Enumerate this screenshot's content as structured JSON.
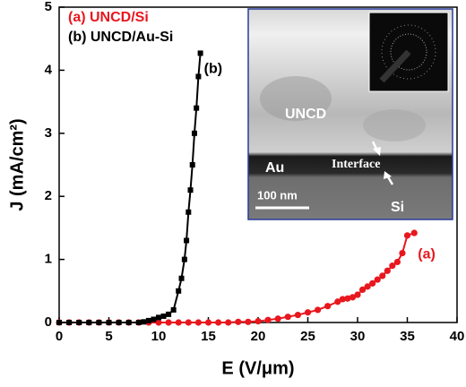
{
  "chart_data": {
    "type": "line",
    "xlabel": "E (V/μm)",
    "ylabel": "J (mA/cm²)",
    "xlim": [
      0,
      40
    ],
    "xticks": [
      0,
      5,
      10,
      15,
      20,
      25,
      30,
      35,
      40
    ],
    "ylim": [
      0,
      5
    ],
    "yticks": [
      0,
      1,
      2,
      3,
      4,
      5
    ],
    "legend": "upper left",
    "series": [
      {
        "name": "(a) UNCD/Si",
        "label": "(a)",
        "color": "#e8171e",
        "marker": "circle",
        "x": [
          0,
          1,
          2,
          3,
          4,
          5,
          6,
          7,
          8,
          9,
          10,
          11,
          12,
          13,
          14,
          15,
          16,
          17,
          18,
          19,
          20,
          21,
          22,
          23,
          24,
          25,
          26,
          27,
          28,
          28.5,
          29,
          29.5,
          30,
          30.5,
          31,
          31.5,
          32,
          32.5,
          33,
          33.5,
          34,
          34.5,
          35,
          35.7
        ],
        "values": [
          0,
          0,
          0,
          0,
          0,
          0,
          0,
          0,
          0,
          0,
          0,
          0,
          0,
          0,
          0,
          0,
          0,
          0,
          0.01,
          0.01,
          0.02,
          0.04,
          0.06,
          0.09,
          0.12,
          0.16,
          0.2,
          0.26,
          0.33,
          0.37,
          0.38,
          0.4,
          0.44,
          0.52,
          0.57,
          0.62,
          0.68,
          0.74,
          0.82,
          0.9,
          0.96,
          1.1,
          1.38,
          1.42
        ]
      },
      {
        "name": "(b) UNCD/Au-Si",
        "label": "(b)",
        "color": "#000000",
        "marker": "square",
        "x": [
          0,
          1,
          2,
          3,
          4,
          5,
          6,
          7,
          8,
          8.5,
          9,
          9.5,
          10,
          10.5,
          11,
          11.5,
          12,
          12.3,
          12.6,
          12.8,
          13,
          13.2,
          13.4,
          13.6,
          13.8,
          14,
          14.2
        ],
        "values": [
          0,
          0,
          0,
          0,
          0,
          0,
          0,
          0,
          0,
          0.01,
          0.03,
          0.05,
          0.08,
          0.1,
          0.13,
          0.2,
          0.5,
          0.7,
          1.0,
          1.3,
          1.75,
          2.1,
          2.5,
          3.0,
          3.4,
          3.9,
          4.27
        ]
      }
    ],
    "inset_labels": [
      "UNCD",
      "Au",
      "Interface",
      "100 nm",
      "Si"
    ]
  }
}
